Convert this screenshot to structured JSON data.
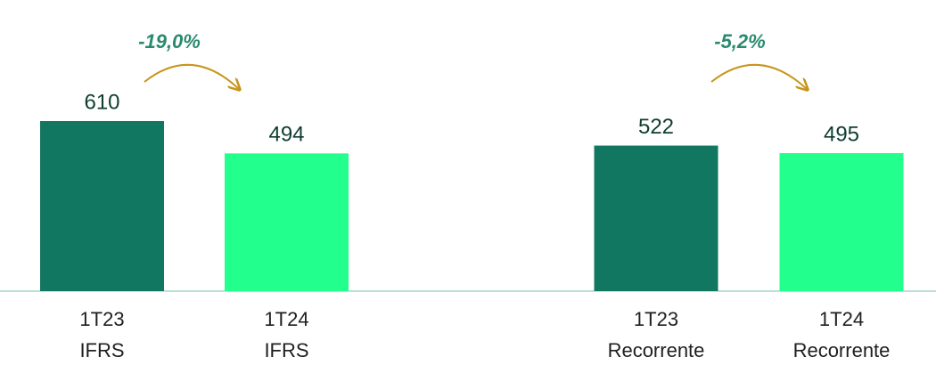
{
  "chart_data": {
    "type": "bar",
    "categories": [
      [
        "1T23",
        "IFRS"
      ],
      [
        "1T24",
        "IFRS"
      ],
      [
        "1T23",
        "Recorrente"
      ],
      [
        "1T24",
        "Recorrente"
      ]
    ],
    "values": [
      610,
      494,
      522,
      495
    ],
    "colors": [
      "#127760",
      "#22ff8c",
      "#127760",
      "#22ff8c"
    ],
    "annotations": [
      "-19,0%",
      "-5,2%"
    ]
  }
}
